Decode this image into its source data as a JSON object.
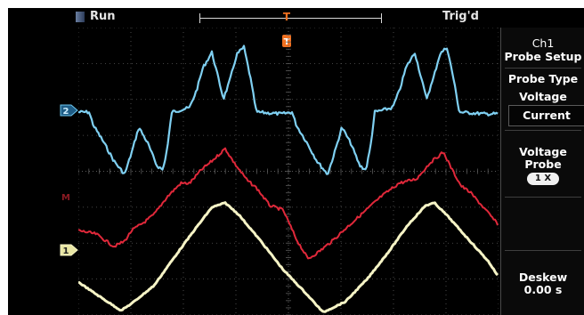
{
  "status": {
    "run_label": "Run",
    "trigger_label": "Trig'd"
  },
  "menu": {
    "channel": "Ch1",
    "title": "Probe Setup",
    "probe_type": "Probe Type",
    "type_options": [
      "Voltage",
      "Current"
    ],
    "probe_label_line1": "Voltage",
    "probe_label_line2": "Probe",
    "probe_attenuation": "1 X",
    "deskew_label": "Deskew",
    "deskew_value": "0.00 s"
  },
  "channels": [
    {
      "id": "2",
      "color": "#6cc6ee"
    },
    {
      "id": "M",
      "color": "#d62838"
    },
    {
      "id": "1",
      "color": "#f3f0b6"
    }
  ],
  "colors": {
    "background": "#000000",
    "grid": "#5a5a5a",
    "ch2_trace": "#7fd0f2",
    "math_trace": "#e0283a",
    "ch1_trace": "#f6f4c6",
    "trigger_marker": "#f07020"
  }
}
